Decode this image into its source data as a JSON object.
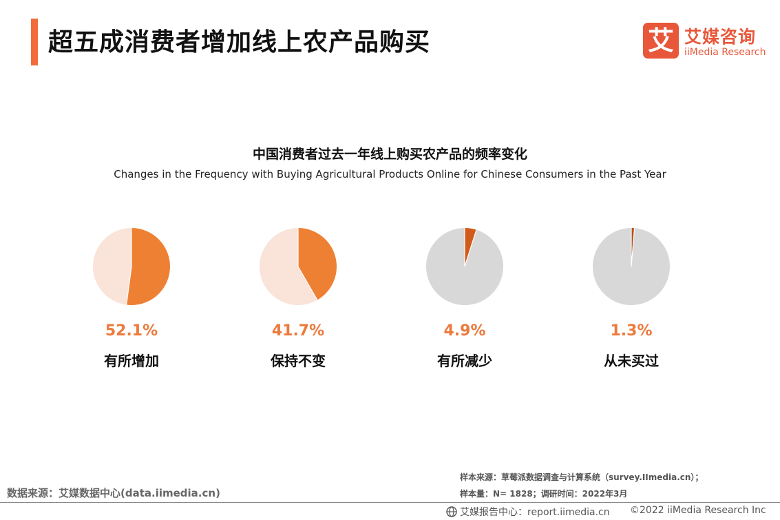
{
  "header": {
    "title": "超五成消费者增加线上农产品购买",
    "accent_color": "#f26b3a"
  },
  "logo": {
    "mark": "艾",
    "cn": "艾媒咨询",
    "en": "iiMedia Research",
    "color": "#e8573a"
  },
  "chart_data": {
    "type": "pie",
    "title": "中国消费者过去一年线上购买农产品的频率变化",
    "subtitle": "Changes in the Frequency with Buying Agricultural Products Online for Chinese Consumers in the Past Year",
    "unit": "%",
    "series": [
      {
        "name": "有所增加",
        "value": 52.1,
        "label": "52.1%",
        "color": "#ee8034",
        "rest_color": "#fae3d8"
      },
      {
        "name": "保持不变",
        "value": 41.7,
        "label": "41.7%",
        "color": "#ee8034",
        "rest_color": "#fae3d8"
      },
      {
        "name": "有所减少",
        "value": 4.9,
        "label": "4.9%",
        "color": "#d25a1a",
        "rest_color": "#d8d8d8"
      },
      {
        "name": "从未买过",
        "value": 1.3,
        "label": "1.3%",
        "color": "#b4501a",
        "rest_color": "#d8d8d8"
      }
    ]
  },
  "footer": {
    "data_source": "数据来源：艾媒数据中心(data.iimedia.cn)",
    "sample_source": "样本来源：草莓派数据调查与计算系统（survey.IImedia.cn）；",
    "sample_size": "样本量：N= 1828；调研时间：2022年3月",
    "report_center": "艾媒报告中心：report.iimedia.cn",
    "copyright": "©2022  iiMedia Research  Inc"
  }
}
